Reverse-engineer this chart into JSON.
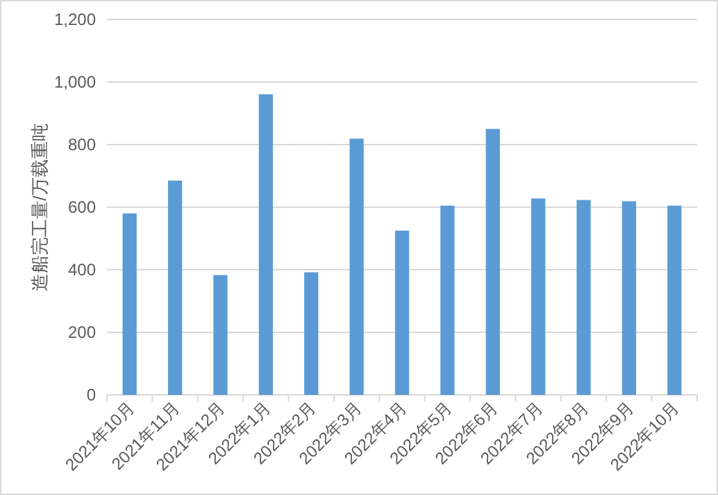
{
  "chart_data": {
    "type": "bar",
    "ylabel": "造船完工量/万载重吨",
    "categories": [
      "2021年10月",
      "2021年11月",
      "2021年12月",
      "2022年1月",
      "2022年2月",
      "2022年3月",
      "2022年4月",
      "2022年5月",
      "2022年6月",
      "2022年7月",
      "2022年8月",
      "2022年9月",
      "2022年10月"
    ],
    "values": [
      580,
      685,
      383,
      961,
      392,
      819,
      525,
      605,
      850,
      628,
      623,
      619,
      605
    ],
    "color": "#5b9bd5",
    "ylim": [
      0,
      1200
    ],
    "yticks": [
      {
        "value": 0,
        "label": "0"
      },
      {
        "value": 200,
        "label": "200"
      },
      {
        "value": 400,
        "label": "400"
      },
      {
        "value": 600,
        "label": "600"
      },
      {
        "value": 800,
        "label": "800"
      },
      {
        "value": 1000,
        "label": "1,000"
      },
      {
        "value": 1200,
        "label": "1,200"
      }
    ],
    "grid": "y"
  }
}
